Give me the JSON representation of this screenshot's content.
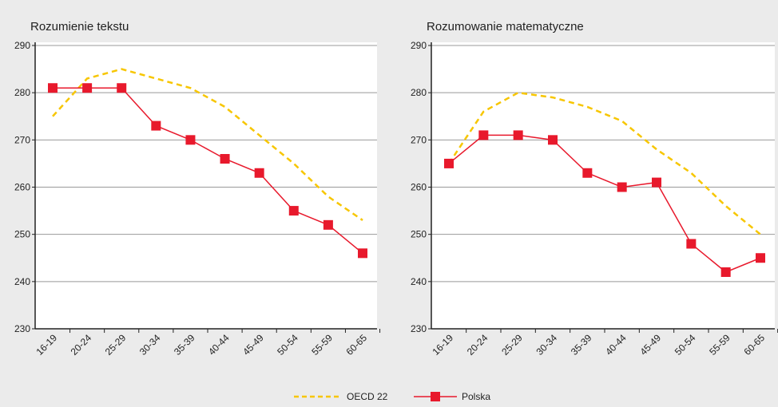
{
  "chart_data": [
    {
      "type": "line",
      "title": "Rozumienie tekstu",
      "categories": [
        "16-19",
        "20-24",
        "25-29",
        "30-34",
        "35-39",
        "40-44",
        "45-49",
        "50-54",
        "55-59",
        "60-65"
      ],
      "series": [
        {
          "name": "OECD 22",
          "color": "#f7c600",
          "style": "dashed",
          "values": [
            275,
            283,
            285,
            283,
            281,
            277,
            271,
            265,
            258,
            253
          ]
        },
        {
          "name": "Polska",
          "color": "#e8192c",
          "marker": "square",
          "values": [
            281,
            281,
            281,
            273,
            270,
            266,
            263,
            255,
            252,
            246
          ]
        }
      ],
      "ylim": [
        230,
        290
      ],
      "yticks": [
        230,
        240,
        250,
        260,
        270,
        280,
        290
      ],
      "grid": true
    },
    {
      "type": "line",
      "title": "Rozumowanie matematyczne",
      "categories": [
        "16-19",
        "20-24",
        "25-29",
        "30-34",
        "35-39",
        "40-44",
        "45-49",
        "50-54",
        "55-59",
        "60-65"
      ],
      "series": [
        {
          "color": "#f7c600",
          "style": "dashed",
          "values": [
            265,
            276,
            280,
            279,
            277,
            274,
            268,
            263,
            256,
            250
          ]
        },
        {
          "color": "#e8192c",
          "marker": "square",
          "values": [
            265,
            271,
            271,
            270,
            263,
            260,
            261,
            248,
            242,
            245
          ]
        }
      ],
      "ylim": [
        230,
        290
      ],
      "yticks": [
        230,
        240,
        250,
        260,
        270,
        280,
        290
      ],
      "grid": true
    }
  ]
}
